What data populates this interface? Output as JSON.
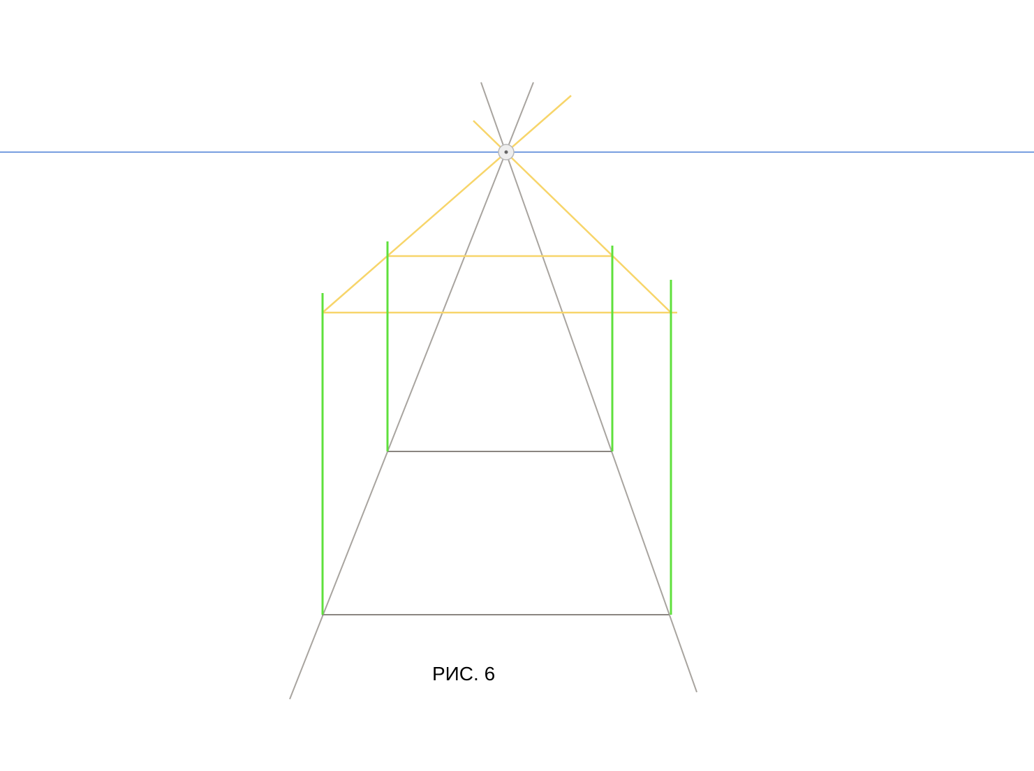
{
  "figure": {
    "caption": "РИС. 6"
  },
  "colors": {
    "horizon": "#4a7fd6",
    "perspective": "#a8a49f",
    "ground_edge": "#8a8580",
    "roof": "#f7d56a",
    "vertical": "#5fe03c",
    "vanishing_point_fill": "#eeeeee",
    "vanishing_point_stroke": "#b8b8b8",
    "vanishing_point_dot": "#666666"
  }
}
